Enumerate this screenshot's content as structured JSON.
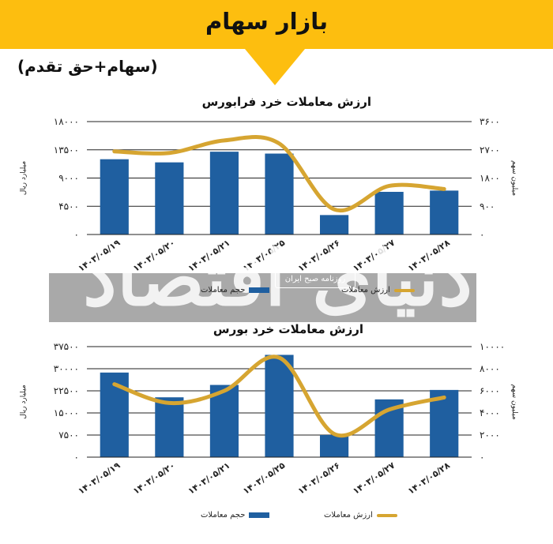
{
  "header": {
    "title": "بازار سهام"
  },
  "subtitle": "(سهام+حق تقدم)",
  "watermark": {
    "main": "دنیای اقتصاد",
    "sub": "روزنامه صبح ایران"
  },
  "colors": {
    "bar": "#1f5fa0",
    "line": "#d6a531",
    "accent": "#fdbe0f"
  },
  "chart_data": [
    {
      "type": "bar",
      "title": "ارزش معاملات خرد فرابورس",
      "categories": [
        "۱۴۰۳/۰۵/۱۹",
        "۱۴۰۳/۰۵/۲۰",
        "۱۴۰۳/۰۵/۲۱",
        "۱۴۰۳/۰۵/۲۵",
        "۱۴۰۳/۰۵/۲۶",
        "۱۴۰۳/۰۵/۲۷",
        "۱۴۰۳/۰۵/۲۸"
      ],
      "ylabel": "میلیارد ریال",
      "y2label": "میلیون سهم",
      "ylim": [
        0,
        18000
      ],
      "y2lim": [
        0,
        3600
      ],
      "yticks": [
        "۰",
        "۴۵۰۰",
        "۹۰۰۰",
        "۱۳۵۰۰",
        "۱۸۰۰۰"
      ],
      "y2ticks": [
        "۰",
        "۹۰۰",
        "۱۸۰۰",
        "۲۷۰۰",
        "۳۶۰۰"
      ],
      "series": [
        {
          "name": "ارزش معاملات",
          "kind": "line",
          "axis": "right",
          "values": [
            2650,
            2600,
            3000,
            2900,
            800,
            1550,
            1450
          ]
        },
        {
          "name": "حجم معاملات",
          "kind": "bar",
          "axis": "left",
          "values": [
            12000,
            11500,
            13200,
            12900,
            3100,
            6800,
            7000
          ]
        }
      ],
      "grid": true,
      "legend": "bottom"
    },
    {
      "type": "bar",
      "title": "ارزش معاملات خرد بورس",
      "categories": [
        "۱۴۰۳/۰۵/۱۹",
        "۱۴۰۳/۰۵/۲۰",
        "۱۴۰۳/۰۵/۲۱",
        "۱۴۰۳/۰۵/۲۵",
        "۱۴۰۳/۰۵/۲۶",
        "۱۴۰۳/۰۵/۲۷",
        "۱۴۰۳/۰۵/۲۸"
      ],
      "ylabel": "میلیارد ریال",
      "y2label": "میلیون سهم",
      "ylim": [
        0,
        37500
      ],
      "y2lim": [
        0,
        10000
      ],
      "yticks": [
        "۰",
        "۷۵۰۰",
        "۱۵۰۰۰",
        "۲۲۵۰۰",
        "۳۰۰۰۰",
        "۳۷۵۰۰"
      ],
      "y2ticks": [
        "۰",
        "۲۰۰۰",
        "۴۰۰۰",
        "۶۰۰۰",
        "۸۰۰۰",
        "۱۰۰۰۰"
      ],
      "series": [
        {
          "name": "ارزش معاملات",
          "kind": "line",
          "axis": "right",
          "values": [
            6600,
            4900,
            6000,
            9000,
            2100,
            4300,
            5400
          ]
        },
        {
          "name": "حجم معاملات",
          "kind": "bar",
          "axis": "left",
          "values": [
            28700,
            20300,
            24500,
            34700,
            7500,
            19600,
            22800
          ]
        }
      ],
      "grid": true,
      "legend": "bottom"
    }
  ]
}
